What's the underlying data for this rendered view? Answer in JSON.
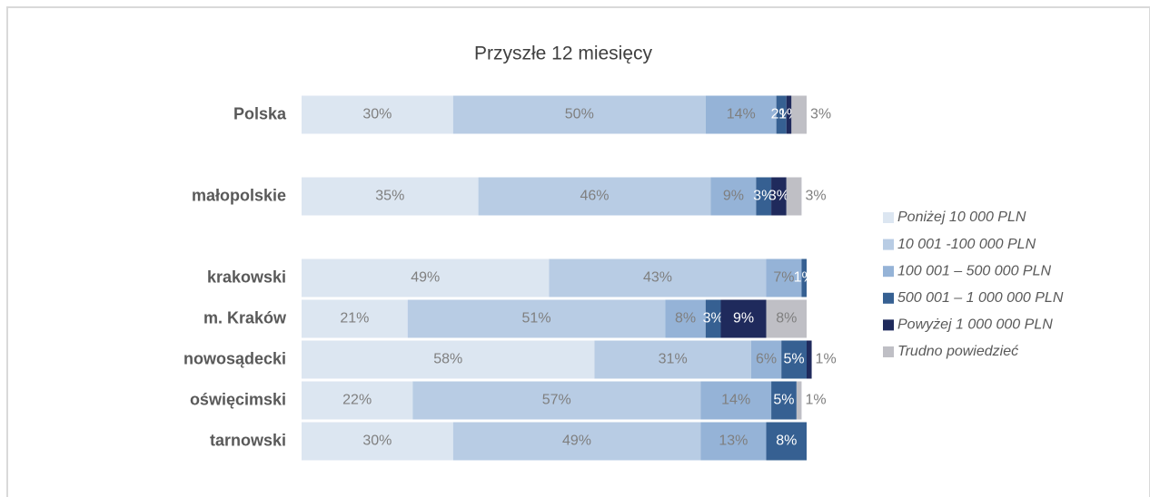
{
  "chart_data": {
    "type": "stacked-bar-horizontal",
    "title": "Przyszłe 12 miesięcy",
    "categories": [
      "Polska",
      null,
      "małopolskie",
      null,
      "krakowski",
      "m. Kraków",
      "nowosądecki",
      "oświęcimski",
      "tarnowski"
    ],
    "xlim": [
      0,
      100
    ],
    "legend": "right",
    "series": [
      {
        "name": "Poniżej 10 000 PLN",
        "color": "#dce6f1",
        "values": [
          30,
          null,
          35,
          null,
          49,
          21,
          58,
          22,
          30
        ],
        "value_labels": [
          "30%",
          null,
          "35%",
          null,
          "49%",
          "21%",
          "58%",
          "22%",
          "30%"
        ]
      },
      {
        "name": "10 001 -100 000 PLN",
        "color": "#b8cce4",
        "values": [
          50,
          null,
          46,
          null,
          43,
          51,
          31,
          57,
          49
        ],
        "value_labels": [
          "50%",
          null,
          "46%",
          null,
          "43%",
          "51%",
          "31%",
          "57%",
          "49%"
        ]
      },
      {
        "name": "100 001 – 500 000 PLN",
        "color": "#95b3d7",
        "values": [
          14,
          null,
          9,
          null,
          7,
          8,
          6,
          14,
          13
        ],
        "value_labels": [
          "14%",
          null,
          "9%",
          null,
          "7%",
          "8%",
          "6%",
          "14%",
          "13%"
        ]
      },
      {
        "name": "500 001 – 1 000 000 PLN",
        "color": "#366092",
        "values": [
          2,
          null,
          3,
          null,
          1,
          3,
          5,
          5,
          8
        ],
        "value_labels": [
          "2%",
          null,
          "3%",
          null,
          "1%",
          "3%",
          "5%",
          "5%",
          "8%"
        ]
      },
      {
        "name": "Powyżej 1 000 000 PLN",
        "color": "#1f2a5c",
        "values": [
          1,
          null,
          3,
          null,
          null,
          9,
          1,
          null,
          null
        ],
        "value_labels": [
          "1%",
          null,
          "3%",
          null,
          null,
          "9%",
          "1%",
          null,
          null
        ]
      },
      {
        "name": "Trudno powiedzieć",
        "color": "#bfbfc5",
        "values": [
          3,
          null,
          3,
          null,
          null,
          8,
          null,
          1,
          null
        ],
        "value_labels": [
          "3%",
          null,
          "3%",
          null,
          null,
          "8%",
          null,
          "1%",
          null
        ]
      }
    ]
  }
}
